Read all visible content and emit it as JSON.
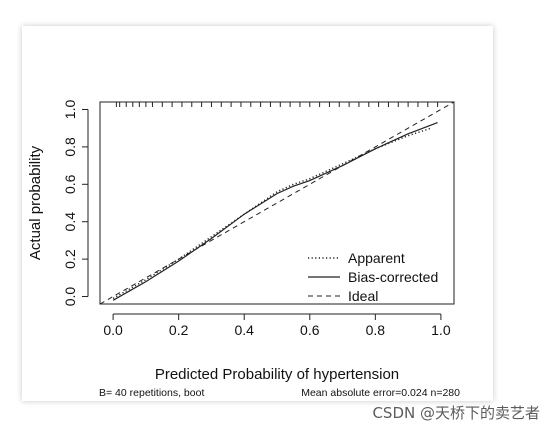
{
  "chart_data": {
    "type": "line",
    "title": "",
    "xlabel": "Predicted Probability of hypertension",
    "ylabel": "Actual probability",
    "xlim": [
      -0.04,
      1.04
    ],
    "ylim": [
      -0.04,
      1.04
    ],
    "x_ticks": [
      0.0,
      0.2,
      0.4,
      0.6,
      0.8,
      1.0
    ],
    "y_ticks": [
      0.0,
      0.2,
      0.4,
      0.6,
      0.8,
      1.0
    ],
    "x_tick_labels": [
      "0.0",
      "0.2",
      "0.4",
      "0.6",
      "0.8",
      "1.0"
    ],
    "y_tick_labels": [
      "0.0",
      "0.2",
      "0.4",
      "0.6",
      "0.8",
      "1.0"
    ],
    "grid": false,
    "legend_position": "bottom-right",
    "series": [
      {
        "name": "Apparent",
        "style": "dotted",
        "x": [
          0.0,
          0.1,
          0.2,
          0.3,
          0.4,
          0.5,
          0.55,
          0.6,
          0.7,
          0.8,
          0.9,
          0.97
        ],
        "y": [
          -0.01,
          0.09,
          0.2,
          0.32,
          0.44,
          0.56,
          0.6,
          0.63,
          0.71,
          0.79,
          0.86,
          0.9
        ]
      },
      {
        "name": "Bias-corrected",
        "style": "solid",
        "x": [
          0.0,
          0.1,
          0.2,
          0.3,
          0.4,
          0.5,
          0.55,
          0.6,
          0.7,
          0.8,
          0.9,
          0.99
        ],
        "y": [
          -0.02,
          0.08,
          0.19,
          0.31,
          0.44,
          0.55,
          0.59,
          0.62,
          0.7,
          0.79,
          0.87,
          0.93
        ]
      },
      {
        "name": "Ideal",
        "style": "dashed",
        "x": [
          -0.04,
          1.04
        ],
        "y": [
          -0.04,
          1.04
        ]
      }
    ],
    "rug_top": [
      0.01,
      0.02,
      0.04,
      0.06,
      0.08,
      0.1,
      0.12,
      0.15,
      0.18,
      0.21,
      0.24,
      0.27,
      0.3,
      0.33,
      0.36,
      0.39,
      0.42,
      0.45,
      0.48,
      0.51,
      0.54,
      0.57,
      0.6,
      0.63,
      0.66,
      0.69,
      0.72,
      0.75,
      0.78,
      0.81,
      0.84,
      0.87,
      0.9,
      0.93,
      0.96,
      0.99
    ],
    "footnote_left": "B= 40 repetitions, boot",
    "footnote_right": "Mean absolute error=0.024 n=280"
  },
  "watermark": "CSDN @天桥下的卖艺者"
}
